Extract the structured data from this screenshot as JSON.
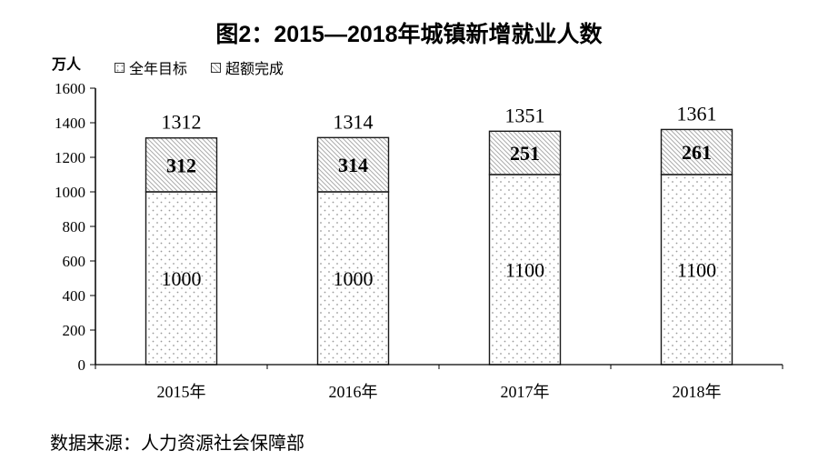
{
  "title": "图2：2015—2018年城镇新增就业人数",
  "y_axis_unit": "万人",
  "legend": {
    "items": [
      {
        "label": "全年目标",
        "pattern": "dots"
      },
      {
        "label": "超额完成",
        "pattern": "hatch"
      }
    ]
  },
  "source_note": "数据来源：人力资源社会保障部",
  "colors": {
    "axis": "#000000",
    "bar_border": "#1a1a1a",
    "dot_fill": "#999999",
    "hatch_line": "#ababab",
    "text": "#000000",
    "background": "#ffffff"
  },
  "chart_data": {
    "type": "bar",
    "stacked": true,
    "title": "图2：2015—2018年城镇新增就业人数",
    "categories": [
      "2015年",
      "2016年",
      "2017年",
      "2018年"
    ],
    "series": [
      {
        "name": "全年目标",
        "pattern": "dots",
        "values": [
          1000,
          1000,
          1100,
          1100
        ]
      },
      {
        "name": "超额完成",
        "pattern": "hatch",
        "values": [
          312,
          314,
          251,
          261
        ]
      }
    ],
    "totals": [
      1312,
      1314,
      1351,
      1361
    ],
    "xlabel": "",
    "ylabel": "万人",
    "ylim": [
      0,
      1600
    ],
    "yticks": [
      0,
      200,
      400,
      600,
      800,
      1000,
      1200,
      1400,
      1600
    ],
    "grid": false,
    "legend_position": "top-left"
  }
}
